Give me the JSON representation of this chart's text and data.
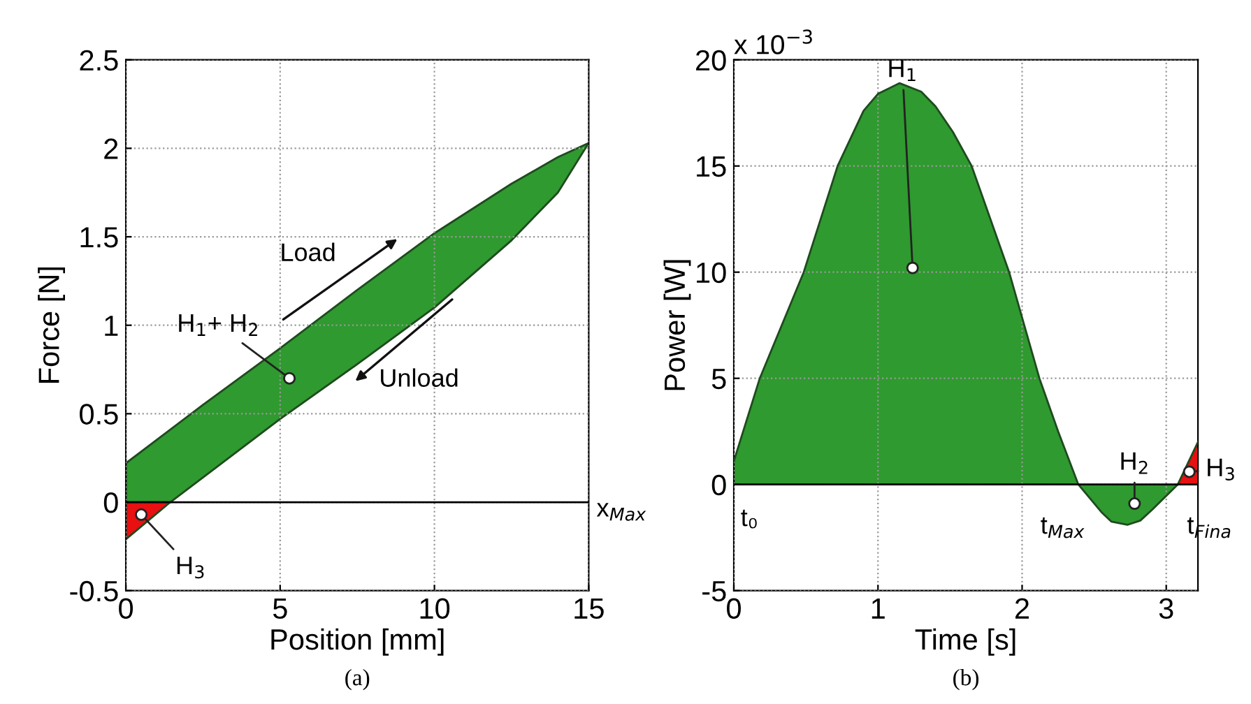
{
  "chart_data": [
    {
      "type": "area",
      "title": "(a)",
      "xlabel": "Position [mm]",
      "ylabel": "Force [N]",
      "xlim": [
        0,
        15
      ],
      "ylim": [
        -0.5,
        2.5
      ],
      "xticks": [
        0,
        5,
        10,
        15
      ],
      "yticks": [
        -0.5,
        0,
        0.5,
        1,
        1.5,
        2,
        2.5
      ],
      "grid": true,
      "series": [
        {
          "type": "area",
          "color": "#2f9a2f",
          "x": [
            0,
            2.5,
            5,
            7.5,
            10,
            12.5,
            14,
            15,
            14,
            12.5,
            10,
            7.5,
            5,
            2.5,
            1.44,
            0
          ],
          "values": [
            0.22,
            0.55,
            0.87,
            1.2,
            1.52,
            1.8,
            1.95,
            2.03,
            1.75,
            1.48,
            1.1,
            0.78,
            0.47,
            0.14,
            0,
            0
          ]
        },
        {
          "type": "area",
          "color": "#e81010",
          "x": [
            0,
            1.44,
            0
          ],
          "values": [
            0,
            0,
            -0.21
          ]
        },
        {
          "type": "scatter",
          "color": "#ffffff",
          "marker": "circle",
          "x": [
            5.3,
            0.5
          ],
          "values": [
            0.7,
            -0.07
          ]
        }
      ],
      "ref_lines": [
        {
          "axis": "y",
          "value": 0,
          "label": "x$_{Max}$",
          "color": "#000000"
        }
      ],
      "annotations": [
        {
          "text": "H$_{1}$+ H$_{2}$",
          "x": 5.3,
          "y": 0.7
        },
        {
          "text": "H$_{3}$",
          "x": 0.5,
          "y": -0.07
        },
        "Load",
        "Unload"
      ]
    },
    {
      "type": "area",
      "title": "(b)",
      "xlabel": "Time [s]",
      "ylabel": "Power [W]",
      "xlim": [
        0,
        3.22
      ],
      "ylim": [
        -5,
        20
      ],
      "xticks": [
        0,
        1,
        2,
        3
      ],
      "yticks": [
        -5,
        0,
        5,
        10,
        15,
        20
      ],
      "grid": true,
      "series": [
        {
          "type": "area",
          "color": "#2f9a2f",
          "x": [
            0,
            0.18,
            0.485,
            0.72,
            0.9,
            1.0,
            1.15,
            1.3,
            1.4,
            1.52,
            1.65,
            1.91,
            2.12,
            2.25,
            2.39,
            2.55,
            2.62,
            2.73,
            2.82,
            2.9,
            3.08
          ],
          "values": [
            1.1,
            5,
            10,
            15,
            17.6,
            18.4,
            18.9,
            18.5,
            17.8,
            16.6,
            15,
            10,
            5,
            2.5,
            0,
            -1.3,
            -1.75,
            -1.9,
            -1.7,
            -1.2,
            0
          ]
        },
        {
          "type": "area",
          "color": "#e81010",
          "x": [
            3.08,
            3.22
          ],
          "values": [
            0,
            2.0
          ]
        },
        {
          "type": "scatter",
          "color": "#ffffff",
          "marker": "circle",
          "x": [
            1.24,
            2.78,
            3.16
          ],
          "values": [
            10.2,
            -0.9,
            0.6
          ]
        }
      ],
      "ref_lines": [
        {
          "axis": "y",
          "value": 0,
          "color": "#000000"
        }
      ],
      "annotations": [
        {
          "text": "H$_{1}$",
          "x": 1.24,
          "y": 10.2
        },
        {
          "text": "H$_{2}$",
          "x": 2.78,
          "y": -0.9
        },
        {
          "text": "H$_{3}$",
          "x": 3.16,
          "y": 0.6
        },
        {
          "text": "t₀",
          "x": 0,
          "y": 0
        },
        {
          "text": "t$_{Max}$",
          "x": 2.39,
          "y": 0
        },
        {
          "text": "t$_{Fina}$",
          "x": 3.22,
          "y": 0
        },
        "x 10$^{−3}$"
      ]
    }
  ]
}
